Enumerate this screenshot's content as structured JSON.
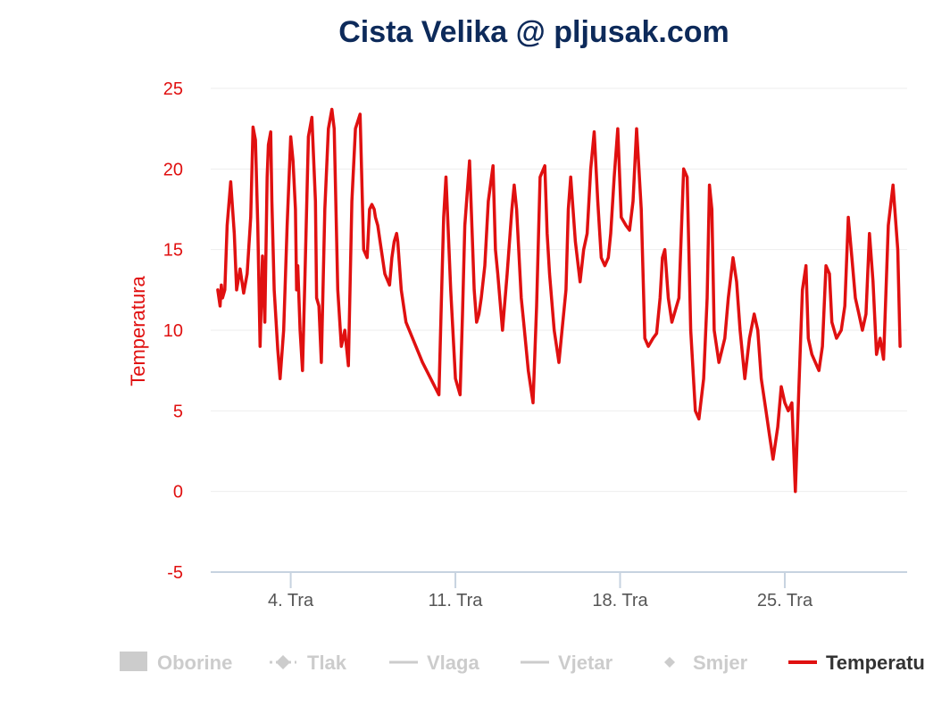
{
  "chart_data": {
    "type": "line",
    "title": "Cista Velika @ pljusak.com",
    "ylabel": "Temperatura",
    "ylim": [
      -5,
      25
    ],
    "yticks": [
      -5,
      0,
      5,
      10,
      15,
      20,
      25
    ],
    "xlim": [
      0.6,
      30.2
    ],
    "xticks": [
      {
        "value": 4,
        "label": "4. Tra"
      },
      {
        "value": 11,
        "label": "11. Tra"
      },
      {
        "value": 18,
        "label": "18. Tra"
      },
      {
        "value": 25,
        "label": "25. Tra"
      }
    ],
    "grid": true,
    "legend_position": "bottom",
    "legend": [
      {
        "label": "Oborine",
        "symbol": "area",
        "active": false
      },
      {
        "label": "Tlak",
        "symbol": "dash-diamond",
        "active": false
      },
      {
        "label": "Vlaga",
        "symbol": "line",
        "active": false
      },
      {
        "label": "Vjetar",
        "symbol": "line",
        "active": false
      },
      {
        "label": "Smjer",
        "symbol": "diamond",
        "active": false
      },
      {
        "label": "Temperatura",
        "symbol": "line",
        "active": true
      }
    ],
    "series": [
      {
        "name": "Temperatura",
        "color": "#e01010",
        "x": [
          0.9,
          1.0,
          1.05,
          1.1,
          1.2,
          1.3,
          1.45,
          1.6,
          1.7,
          1.85,
          2.0,
          2.15,
          2.3,
          2.4,
          2.5,
          2.6,
          2.7,
          2.8,
          2.9,
          3.0,
          3.05,
          3.15,
          3.2,
          3.3,
          3.45,
          3.55,
          3.7,
          3.85,
          4.0,
          4.1,
          4.2,
          4.25,
          4.3,
          4.4,
          4.5,
          4.6,
          4.75,
          4.9,
          5.05,
          5.1,
          5.2,
          5.3,
          5.45,
          5.6,
          5.75,
          5.85,
          6.0,
          6.15,
          6.3,
          6.45,
          6.6,
          6.75,
          6.95,
          7.1,
          7.25,
          7.35,
          7.45,
          7.55,
          7.6,
          7.7,
          7.8,
          8.0,
          8.2,
          8.3,
          8.4,
          8.5,
          8.55,
          8.7,
          8.9,
          9.6,
          10.3,
          10.4,
          10.5,
          10.6,
          10.8,
          11.0,
          11.2,
          11.3,
          11.4,
          11.6,
          11.8,
          11.9,
          12.0,
          12.1,
          12.25,
          12.4,
          12.6,
          12.7,
          12.8,
          13.0,
          13.2,
          13.4,
          13.5,
          13.6,
          13.8,
          13.9,
          14.0,
          14.1,
          14.3,
          14.45,
          14.6,
          14.8,
          14.9,
          15.0,
          15.2,
          15.4,
          15.5,
          15.7,
          15.8,
          15.9,
          16.1,
          16.3,
          16.45,
          16.6,
          16.75,
          16.9,
          17.05,
          17.2,
          17.35,
          17.5,
          17.6,
          17.75,
          17.9,
          18.05,
          18.25,
          18.4,
          18.55,
          18.7,
          18.9,
          19.05,
          19.2,
          19.4,
          19.55,
          19.7,
          19.8,
          19.9,
          20.05,
          20.2,
          20.5,
          20.7,
          20.85,
          21.0,
          21.2,
          21.35,
          21.55,
          21.7,
          21.8,
          21.9,
          22.0,
          22.2,
          22.45,
          22.6,
          22.8,
          22.95,
          23.1,
          23.3,
          23.5,
          23.7,
          23.85,
          24.0,
          24.2,
          24.35,
          24.5,
          24.7,
          24.85,
          25.0,
          25.15,
          25.3,
          25.45,
          25.6,
          25.75,
          25.9,
          26.0,
          26.15,
          26.3,
          26.45,
          26.6,
          26.75,
          26.9,
          27.0,
          27.2,
          27.4,
          27.55,
          27.7,
          27.85,
          28.0,
          28.15,
          28.3,
          28.45,
          28.6,
          28.75,
          28.9,
          29.05,
          29.2,
          29.4,
          29.6,
          29.8,
          29.9
        ],
        "y": [
          12.5,
          11.5,
          12.8,
          12.0,
          12.5,
          16.5,
          19.2,
          16.0,
          12.5,
          13.8,
          12.3,
          13.5,
          17.0,
          22.6,
          21.8,
          16.5,
          9.0,
          14.6,
          10.5,
          19.5,
          21.5,
          22.3,
          18.0,
          12.5,
          8.8,
          7.0,
          10.0,
          16.5,
          22.0,
          20.5,
          17.5,
          12.5,
          14.0,
          10.0,
          7.5,
          13.0,
          22.0,
          23.2,
          18.0,
          12.0,
          11.5,
          8.0,
          17.5,
          22.5,
          23.7,
          22.5,
          12.5,
          9.0,
          10.0,
          7.8,
          18.0,
          22.5,
          23.4,
          15.0,
          14.5,
          17.5,
          17.8,
          17.5,
          17.0,
          16.5,
          15.5,
          13.5,
          12.8,
          14.5,
          15.5,
          16.0,
          15.5,
          12.5,
          10.5,
          8.0,
          6.0,
          11.5,
          17.0,
          19.5,
          12.5,
          7.0,
          6.0,
          11.0,
          16.5,
          20.5,
          12.5,
          10.5,
          11.0,
          12.0,
          14.0,
          18.0,
          20.2,
          15.0,
          13.5,
          10.0,
          13.5,
          17.5,
          19.0,
          17.5,
          12.0,
          10.5,
          9.0,
          7.5,
          5.5,
          11.5,
          19.5,
          20.2,
          16.0,
          13.5,
          10.0,
          8.0,
          9.5,
          12.5,
          17.5,
          19.5,
          15.5,
          13.0,
          15.0,
          16.0,
          20.0,
          22.3,
          18.0,
          14.5,
          14.0,
          14.5,
          16.0,
          19.5,
          22.5,
          17.0,
          16.5,
          16.2,
          18.0,
          22.5,
          17.5,
          9.5,
          9.0,
          9.5,
          9.8,
          12.0,
          14.5,
          15.0,
          12.0,
          10.5,
          12.0,
          20.0,
          19.5,
          10.0,
          5.0,
          4.5,
          7.0,
          12.0,
          19.0,
          17.5,
          10.0,
          8.0,
          9.5,
          12.0,
          14.5,
          13.0,
          10.0,
          7.0,
          9.5,
          11.0,
          10.0,
          7.0,
          5.0,
          3.5,
          2.0,
          4.0,
          6.5,
          5.5,
          5.0,
          5.5,
          0.0,
          6.5,
          12.5,
          14.0,
          9.5,
          8.5,
          8.0,
          7.5,
          9.0,
          14.0,
          13.5,
          10.5,
          9.5,
          10.0,
          11.5,
          17.0,
          14.5,
          12.0,
          11.0,
          10.0,
          11.0,
          16.0,
          13.0,
          8.5,
          9.5,
          8.2,
          16.5,
          19.0,
          15.0,
          9.0
        ]
      }
    ]
  }
}
